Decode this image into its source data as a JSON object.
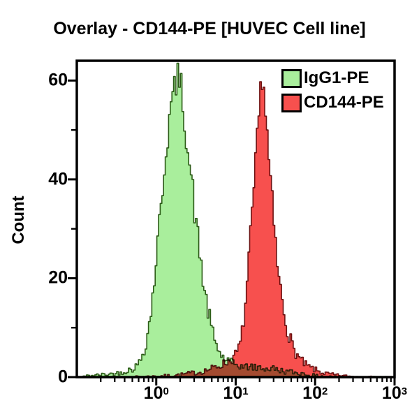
{
  "chart_data": {
    "type": "area",
    "subtype": "flow-cytometry-histogram-overlay",
    "title": "Overlay - CD144-PE [HUVEC Cell line]",
    "xlabel": "",
    "ylabel": "Count",
    "x_scale": "log10",
    "xlim": [
      0.1,
      1000
    ],
    "ylim": [
      0,
      64
    ],
    "grid": false,
    "legend_position": "top-right-inside",
    "x_ticks_major_exponents": [
      0,
      1,
      2,
      3
    ],
    "y_ticks_major": [
      0,
      20,
      40,
      60
    ],
    "y_ticks_minor": [
      10,
      30,
      50
    ],
    "axis_color": "#000000",
    "series": [
      {
        "name": "IgG1-PE",
        "fill": "#a9ee9c",
        "stroke": "#2c5b17",
        "points": [
          [
            0.12,
            0.2
          ],
          [
            0.18,
            0.4
          ],
          [
            0.25,
            0.6
          ],
          [
            0.32,
            0.8
          ],
          [
            0.4,
            1.2
          ],
          [
            0.48,
            1.6
          ],
          [
            0.55,
            2.2
          ],
          [
            0.6,
            3
          ],
          [
            0.65,
            4.5
          ],
          [
            0.7,
            6
          ],
          [
            0.75,
            8
          ],
          [
            0.8,
            11
          ],
          [
            0.85,
            14
          ],
          [
            0.9,
            18
          ],
          [
            0.95,
            22
          ],
          [
            1.0,
            26
          ],
          [
            1.06,
            30
          ],
          [
            1.12,
            35
          ],
          [
            1.2,
            40
          ],
          [
            1.28,
            45
          ],
          [
            1.36,
            49
          ],
          [
            1.45,
            53
          ],
          [
            1.55,
            56
          ],
          [
            1.65,
            58
          ],
          [
            1.75,
            60
          ],
          [
            1.85,
            61
          ],
          [
            1.95,
            58
          ],
          [
            2.05,
            59
          ],
          [
            2.15,
            54
          ],
          [
            2.3,
            50
          ],
          [
            2.45,
            46
          ],
          [
            2.6,
            42
          ],
          [
            2.8,
            38
          ],
          [
            3.0,
            33
          ],
          [
            3.2,
            29
          ],
          [
            3.45,
            25
          ],
          [
            3.7,
            21
          ],
          [
            4.0,
            17
          ],
          [
            4.3,
            14
          ],
          [
            4.7,
            11
          ],
          [
            5.1,
            8.5
          ],
          [
            5.6,
            6.5
          ],
          [
            6.1,
            5
          ],
          [
            6.7,
            4
          ],
          [
            7.4,
            3.5
          ],
          [
            8.2,
            3
          ],
          [
            9.0,
            2.8
          ],
          [
            10.0,
            2.5
          ],
          [
            11.5,
            2.2
          ],
          [
            13.0,
            2.0
          ],
          [
            15.0,
            2.2
          ],
          [
            17.5,
            1.8
          ],
          [
            20.0,
            2.0
          ],
          [
            24.0,
            1.6
          ],
          [
            28.0,
            1.8
          ],
          [
            34.0,
            1.4
          ],
          [
            40.0,
            1.2
          ],
          [
            50.0,
            1.0
          ],
          [
            62.0,
            0.8
          ],
          [
            80.0,
            0.5
          ],
          [
            100.0,
            0.3
          ],
          [
            140.0,
            0.2
          ],
          [
            200.0,
            0.1
          ],
          [
            350.0,
            0.05
          ],
          [
            700.0,
            0
          ],
          [
            1000,
            0
          ]
        ]
      },
      {
        "name": "CD144-PE",
        "fill": "#f7504e",
        "stroke": "#6d1111",
        "points": [
          [
            0.5,
            0.1
          ],
          [
            0.9,
            0.2
          ],
          [
            1.4,
            0.3
          ],
          [
            2.0,
            0.5
          ],
          [
            2.7,
            0.8
          ],
          [
            3.4,
            1.0
          ],
          [
            4.2,
            1.4
          ],
          [
            5.0,
            1.8
          ],
          [
            5.8,
            2.2
          ],
          [
            6.6,
            2.6
          ],
          [
            7.5,
            3.0
          ],
          [
            8.5,
            3.5
          ],
          [
            9.5,
            4.2
          ],
          [
            10.5,
            5.5
          ],
          [
            11.3,
            7
          ],
          [
            12.0,
            10
          ],
          [
            12.6,
            13
          ],
          [
            13.2,
            16
          ],
          [
            13.8,
            20
          ],
          [
            14.4,
            24
          ],
          [
            15.0,
            28
          ],
          [
            15.7,
            32
          ],
          [
            16.4,
            37
          ],
          [
            17.1,
            41
          ],
          [
            17.8,
            45
          ],
          [
            18.5,
            49
          ],
          [
            19.2,
            53
          ],
          [
            19.9,
            57
          ],
          [
            20.6,
            60
          ],
          [
            21.3,
            62
          ],
          [
            22.0,
            59
          ],
          [
            22.8,
            56
          ],
          [
            23.6,
            52
          ],
          [
            24.5,
            48
          ],
          [
            25.5,
            44
          ],
          [
            26.6,
            40
          ],
          [
            27.8,
            36
          ],
          [
            29.0,
            32
          ],
          [
            30.5,
            28
          ],
          [
            32.0,
            24
          ],
          [
            34.0,
            20
          ],
          [
            36.5,
            17
          ],
          [
            39.0,
            14
          ],
          [
            42.0,
            11
          ],
          [
            45.0,
            9
          ],
          [
            49.0,
            7
          ],
          [
            53.0,
            5.5
          ],
          [
            58.0,
            4.5
          ],
          [
            64.0,
            3.5
          ],
          [
            70.0,
            2.8
          ],
          [
            78.0,
            2.2
          ],
          [
            88.0,
            1.8
          ],
          [
            100.0,
            1.4
          ],
          [
            115.0,
            1.0
          ],
          [
            135.0,
            0.7
          ],
          [
            160.0,
            0.5
          ],
          [
            200.0,
            0.3
          ],
          [
            280.0,
            0.15
          ],
          [
            450.0,
            0.05
          ],
          [
            800.0,
            0
          ],
          [
            1000,
            0
          ]
        ]
      }
    ]
  },
  "legend": {
    "items": [
      {
        "label": "IgG1-PE",
        "color": "#a9ee9c"
      },
      {
        "label": "CD144-PE",
        "color": "#f7504e"
      }
    ]
  }
}
